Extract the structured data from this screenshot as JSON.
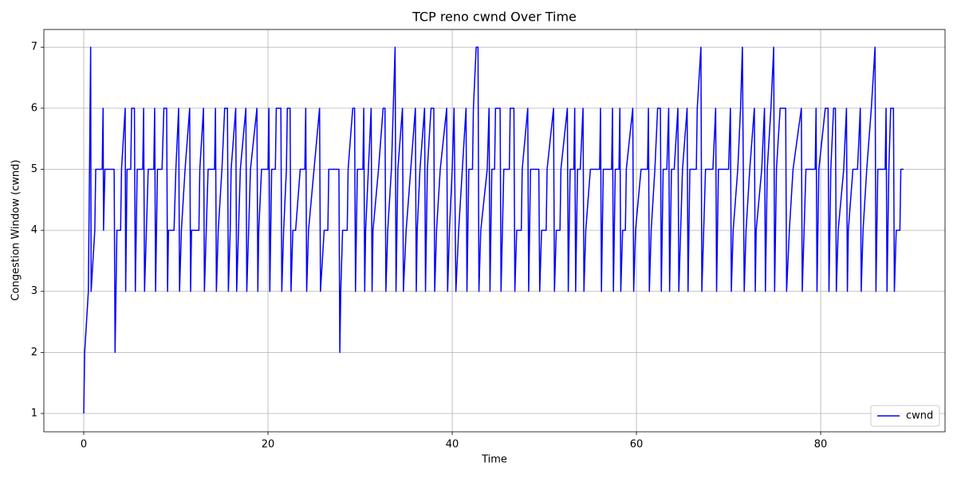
{
  "chart_data": {
    "type": "line",
    "title": "TCP reno cwnd Over Time",
    "x_label": "Time",
    "y_label": "Congestion Window (cwnd)",
    "x": [
      0,
      0.1,
      0.5,
      0.75,
      0.8,
      1.2,
      1.3,
      2.0,
      2.1,
      2.15,
      2.3,
      3.3,
      3.4,
      3.5,
      3.6,
      4.0,
      4.1,
      4.5,
      4.55,
      4.7,
      5.1,
      5.2,
      5.5,
      5.6,
      5.8,
      6.4,
      6.5,
      6.6,
      6.8,
      7.0,
      7.6,
      7.7,
      7.8,
      8.0,
      8.5,
      8.7,
      9.0,
      9.1,
      9.2,
      9.8,
      10.0,
      10.3,
      10.4,
      10.6,
      11.0,
      11.5,
      11.6,
      11.7,
      12.5,
      12.6,
      13.0,
      13.1,
      13.3,
      13.5,
      14.2,
      14.3,
      14.4,
      14.6,
      15.0,
      15.3,
      15.6,
      15.7,
      15.9,
      16.0,
      16.5,
      16.6,
      16.8,
      17.0,
      17.6,
      17.7,
      17.9,
      18.1,
      18.8,
      18.9,
      19.0,
      19.3,
      20.0,
      20.1,
      20.2,
      20.4,
      20.8,
      20.9,
      21.4,
      21.5,
      21.7,
      22.0,
      22.1,
      22.4,
      22.5,
      22.7,
      23.0,
      23.5,
      24.0,
      24.1,
      24.2,
      24.4,
      25.0,
      25.6,
      25.7,
      26.1,
      26.5,
      26.6,
      27.7,
      27.8,
      27.9,
      28.1,
      28.6,
      28.7,
      29.2,
      29.4,
      29.5,
      29.7,
      30.3,
      30.4,
      30.5,
      30.6,
      30.9,
      31.2,
      31.3,
      31.4,
      32.0,
      32.5,
      32.7,
      32.8,
      33.0,
      33.4,
      33.8,
      33.9,
      34.1,
      34.6,
      34.7,
      35.0,
      35.5,
      36.0,
      36.1,
      36.2,
      36.5,
      37.0,
      37.1,
      37.3,
      37.7,
      38.0,
      38.1,
      38.3,
      38.7,
      39.4,
      39.5,
      39.7,
      40.0,
      40.2,
      40.4,
      40.7,
      41.1,
      41.5,
      41.6,
      41.8,
      42.2,
      42.3,
      42.6,
      42.8,
      42.9,
      43.1,
      43.8,
      44.0,
      44.1,
      44.3,
      44.6,
      44.7,
      45.2,
      45.3,
      45.6,
      46.2,
      46.3,
      46.7,
      46.8,
      47.0,
      47.5,
      47.6,
      48.2,
      48.3,
      48.5,
      49.4,
      49.5,
      49.7,
      50.2,
      50.3,
      51.0,
      51.1,
      51.3,
      51.7,
      51.8,
      52.5,
      52.6,
      52.8,
      53.2,
      53.3,
      53.4,
      53.6,
      53.9,
      54.2,
      54.3,
      54.5,
      55.0,
      56.0,
      56.1,
      56.2,
      56.4,
      57.3,
      57.4,
      57.5,
      57.7,
      58.1,
      58.2,
      58.3,
      58.5,
      58.8,
      58.9,
      59.6,
      59.7,
      59.9,
      60.5,
      61.2,
      61.3,
      61.4,
      61.6,
      62.0,
      62.3,
      62.6,
      62.7,
      62.9,
      63.3,
      63.5,
      63.6,
      63.8,
      64.1,
      64.5,
      64.6,
      64.8,
      65.0,
      65.5,
      65.6,
      65.8,
      66.5,
      66.6,
      67.0,
      67.1,
      67.3,
      67.5,
      68.3,
      68.6,
      68.7,
      68.9,
      70.0,
      70.2,
      70.3,
      70.5,
      71.0,
      71.3,
      71.5,
      71.7,
      71.9,
      72.3,
      72.8,
      72.9,
      73.0,
      73.6,
      73.9,
      74.0,
      74.2,
      74.6,
      74.9,
      75.0,
      75.2,
      75.6,
      76.2,
      76.3,
      76.6,
      77.0,
      77.9,
      78.0,
      78.2,
      78.4,
      79.4,
      79.5,
      79.6,
      79.8,
      80.5,
      80.8,
      80.9,
      81.1,
      81.4,
      81.6,
      81.7,
      81.9,
      82.5,
      82.8,
      82.9,
      83.0,
      83.5,
      84.0,
      84.3,
      84.4,
      84.6,
      85.0,
      85.5,
      85.9,
      86.0,
      86.2,
      87.0,
      87.1,
      87.2,
      87.4,
      87.6,
      87.9,
      88.0,
      88.2,
      88.6,
      88.7,
      89.0
    ],
    "series": [
      {
        "name": "cwnd",
        "color": "#0000ff",
        "values": [
          1,
          2,
          3,
          7,
          3,
          4,
          5,
          5,
          6,
          4,
          5,
          5,
          2,
          3,
          4,
          4,
          5,
          6,
          3,
          5,
          5,
          6,
          6,
          3,
          5,
          5,
          6,
          3,
          4,
          5,
          5,
          6,
          3,
          5,
          5,
          6,
          6,
          3,
          4,
          4,
          5,
          6,
          3,
          4,
          5,
          6,
          3,
          4,
          4,
          5,
          6,
          3,
          4,
          5,
          5,
          6,
          3,
          4,
          5,
          6,
          6,
          3,
          4,
          5,
          6,
          3,
          4,
          5,
          6,
          3,
          4,
          5,
          6,
          3,
          4,
          5,
          5,
          6,
          3,
          5,
          5,
          6,
          6,
          3,
          4,
          5,
          6,
          6,
          3,
          4,
          4,
          5,
          5,
          6,
          3,
          4,
          5,
          6,
          3,
          4,
          4,
          5,
          5,
          2,
          3,
          4,
          4,
          5,
          6,
          6,
          3,
          5,
          5,
          6,
          3,
          4,
          5,
          6,
          3,
          4,
          5,
          6,
          6,
          3,
          4,
          5,
          7,
          3,
          5,
          6,
          3,
          4,
          5,
          6,
          3,
          4,
          5,
          6,
          3,
          5,
          6,
          6,
          3,
          4,
          5,
          6,
          3,
          4,
          5,
          6,
          3,
          4,
          5,
          6,
          3,
          5,
          5,
          6,
          7,
          7,
          3,
          4,
          5,
          6,
          3,
          5,
          5,
          6,
          6,
          3,
          5,
          5,
          6,
          6,
          3,
          4,
          4,
          5,
          6,
          3,
          5,
          5,
          3,
          4,
          4,
          5,
          6,
          3,
          4,
          4,
          5,
          6,
          3,
          5,
          5,
          6,
          3,
          5,
          5,
          6,
          3,
          4,
          5,
          5,
          6,
          3,
          5,
          5,
          6,
          3,
          5,
          5,
          6,
          3,
          4,
          4,
          5,
          6,
          3,
          4,
          5,
          5,
          6,
          3,
          4,
          5,
          6,
          6,
          3,
          5,
          5,
          6,
          3,
          5,
          5,
          6,
          3,
          4,
          5,
          6,
          3,
          5,
          5,
          6,
          7,
          3,
          4,
          5,
          5,
          6,
          3,
          5,
          5,
          6,
          3,
          4,
          5,
          6,
          7,
          3,
          4,
          5,
          6,
          3,
          4,
          5,
          6,
          3,
          5,
          6,
          7,
          3,
          5,
          6,
          6,
          3,
          4,
          5,
          6,
          3,
          4,
          5,
          5,
          6,
          3,
          5,
          6,
          6,
          3,
          5,
          6,
          6,
          3,
          4,
          5,
          6,
          3,
          4,
          5,
          5,
          6,
          3,
          4,
          5,
          6,
          7,
          3,
          5,
          5,
          6,
          3,
          5,
          6,
          6,
          3,
          4,
          4,
          5,
          5
        ]
      }
    ],
    "xlim": [
      -4.33,
      93.5
    ],
    "ylim": [
      0.7,
      7.29
    ],
    "xticks": [
      0,
      20,
      40,
      60,
      80
    ],
    "yticks": [
      1,
      2,
      3,
      4,
      5,
      6,
      7
    ],
    "grid": true,
    "legend": "lower right"
  }
}
